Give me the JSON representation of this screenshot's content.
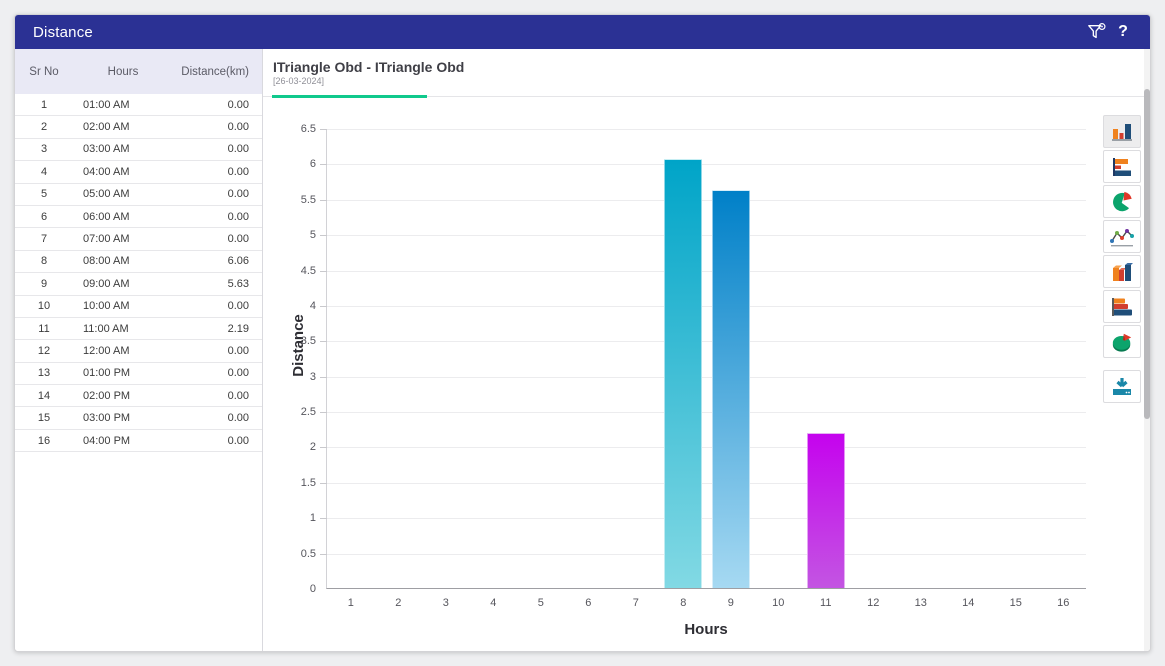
{
  "titlebar": {
    "title": "Distance",
    "help_label": "?"
  },
  "table": {
    "columns": [
      "Sr No",
      "Hours",
      "Distance(km)"
    ],
    "rows": [
      [
        "1",
        "01:00 AM",
        "0.00"
      ],
      [
        "2",
        "02:00 AM",
        "0.00"
      ],
      [
        "3",
        "03:00 AM",
        "0.00"
      ],
      [
        "4",
        "04:00 AM",
        "0.00"
      ],
      [
        "5",
        "05:00 AM",
        "0.00"
      ],
      [
        "6",
        "06:00 AM",
        "0.00"
      ],
      [
        "7",
        "07:00 AM",
        "0.00"
      ],
      [
        "8",
        "08:00 AM",
        "6.06"
      ],
      [
        "9",
        "09:00 AM",
        "5.63"
      ],
      [
        "10",
        "10:00 AM",
        "0.00"
      ],
      [
        "11",
        "11:00 AM",
        "2.19"
      ],
      [
        "12",
        "12:00 AM",
        "0.00"
      ],
      [
        "13",
        "01:00 PM",
        "0.00"
      ],
      [
        "14",
        "02:00 PM",
        "0.00"
      ],
      [
        "15",
        "03:00 PM",
        "0.00"
      ],
      [
        "16",
        "04:00 PM",
        "0.00"
      ]
    ]
  },
  "tab": {
    "title": "ITriangle Obd - ITriangle Obd",
    "subtitle": "[26-03-2024]",
    "accent_color": "#10c98c"
  },
  "chart_data": {
    "type": "bar",
    "title": "ITriangle Obd - ITriangle Obd",
    "subtitle": "[26-03-2024]",
    "xlabel": "Hours",
    "ylabel": "Distance",
    "categories": [
      1,
      2,
      3,
      4,
      5,
      6,
      7,
      8,
      9,
      10,
      11,
      12,
      13,
      14,
      15,
      16
    ],
    "values": [
      0,
      0,
      0,
      0,
      0,
      0,
      0,
      6.06,
      5.63,
      0,
      2.19,
      0,
      0,
      0,
      0,
      0
    ],
    "ylim": [
      0,
      6.5
    ],
    "ytick_step": 0.5,
    "grid": true,
    "legend": "none",
    "bar_gradients": {
      "8": [
        "#00a4c8",
        "#82d9e4"
      ],
      "9": [
        "#0080c8",
        "#a6d9f2"
      ],
      "11": [
        "#c503ee",
        "#c355e2"
      ]
    }
  },
  "toolbar": {
    "items": [
      "column-chart",
      "bar-chart",
      "pie-chart",
      "line-chart",
      "column-3d-chart",
      "bar-3d-chart",
      "pie-3d-chart",
      "download"
    ]
  },
  "theme": {
    "titlebar_bg": "#2b3194",
    "table_header_bg": "#e9e9f5"
  }
}
